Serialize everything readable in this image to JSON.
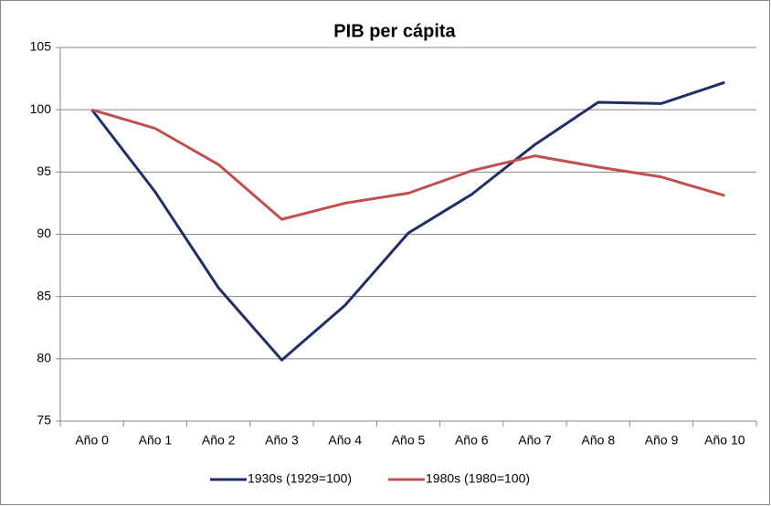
{
  "chart_data": {
    "type": "line",
    "title": "PIB per cápita",
    "categories": [
      "Año 0",
      "Año 1",
      "Año 2",
      "Año 3",
      "Año 4",
      "Año 5",
      "Año 6",
      "Año 7",
      "Año 8",
      "Año 9",
      "Año 10"
    ],
    "series": [
      {
        "name": "1930s (1929=100)",
        "color": "#1f2d6b",
        "values": [
          100,
          93.4,
          85.7,
          79.9,
          84.3,
          90.1,
          93.2,
          97.2,
          100.6,
          100.5,
          102.2
        ]
      },
      {
        "name": "1980s (1980=100)",
        "color": "#c0504d",
        "values": [
          100,
          98.5,
          95.6,
          91.2,
          92.5,
          93.3,
          95.1,
          96.3,
          95.4,
          94.6,
          93.1
        ]
      }
    ],
    "ylim": [
      75,
      105
    ],
    "yticks": [
      75,
      80,
      85,
      90,
      95,
      100,
      105
    ],
    "grid": true,
    "legend": "bottom"
  }
}
